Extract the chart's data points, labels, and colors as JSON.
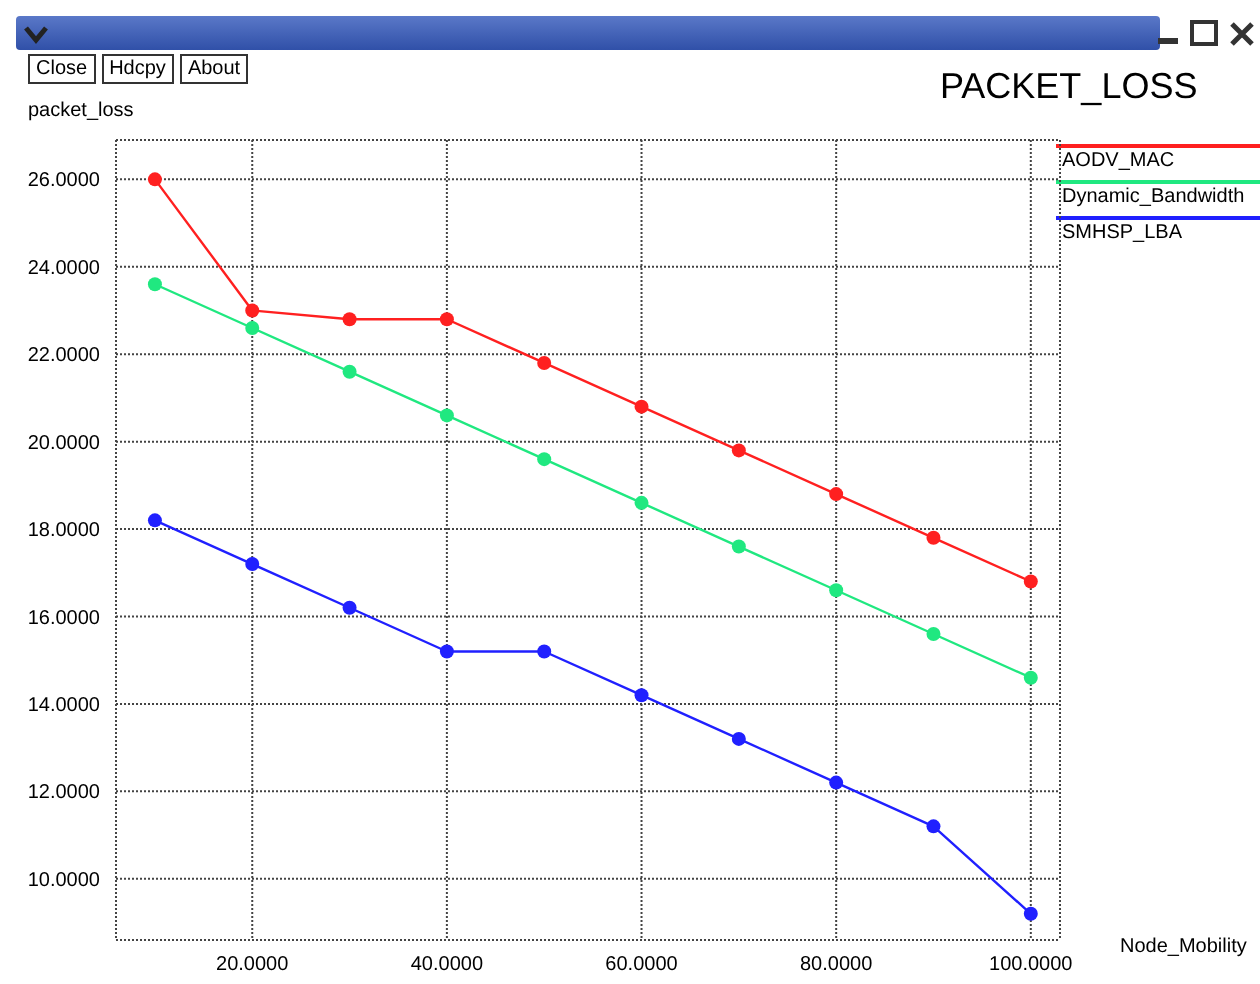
{
  "chart_data": {
    "type": "line",
    "title": "PACKET_LOSS",
    "xlabel": "Node_Mobility",
    "ylabel": "packet_loss",
    "annotations": [
      "Close",
      "Hdcpy",
      "About"
    ],
    "x": [
      10,
      20,
      30,
      40,
      50,
      60,
      70,
      80,
      90,
      100
    ],
    "series": [
      {
        "name": "AODV_MAC",
        "color": "#ff2020",
        "values": [
          26.0,
          23.0,
          22.8,
          22.8,
          21.8,
          20.8,
          19.8,
          18.8,
          17.8,
          16.8
        ]
      },
      {
        "name": "Dynamic_Bandwidth",
        "color": "#20e880",
        "values": [
          23.6,
          22.6,
          21.6,
          20.6,
          19.6,
          18.6,
          17.6,
          16.6,
          15.6,
          14.6
        ]
      },
      {
        "name": "SMHSP_LBA",
        "color": "#2020ff",
        "values": [
          18.2,
          17.2,
          16.2,
          15.2,
          15.2,
          14.2,
          13.2,
          12.2,
          11.2,
          9.2
        ]
      }
    ],
    "xlim": [
      6,
      103
    ],
    "ylim": [
      8.6,
      26.9
    ],
    "xticks": [
      {
        "value": 20,
        "label": "20.0000"
      },
      {
        "value": 40,
        "label": "40.0000"
      },
      {
        "value": 60,
        "label": "60.0000"
      },
      {
        "value": 80,
        "label": "80.0000"
      },
      {
        "value": 100,
        "label": "100.0000"
      }
    ],
    "yticks": [
      {
        "value": 10,
        "label": "10.0000"
      },
      {
        "value": 12,
        "label": "12.0000"
      },
      {
        "value": 14,
        "label": "14.0000"
      },
      {
        "value": 16,
        "label": "16.0000"
      },
      {
        "value": 18,
        "label": "18.0000"
      },
      {
        "value": 20,
        "label": "20.0000"
      },
      {
        "value": 22,
        "label": "22.0000"
      },
      {
        "value": 24,
        "label": "24.0000"
      },
      {
        "value": 26,
        "label": "26.0000"
      }
    ],
    "grid": true,
    "legend": "top right",
    "marker": "circle",
    "line_style": "solid"
  }
}
